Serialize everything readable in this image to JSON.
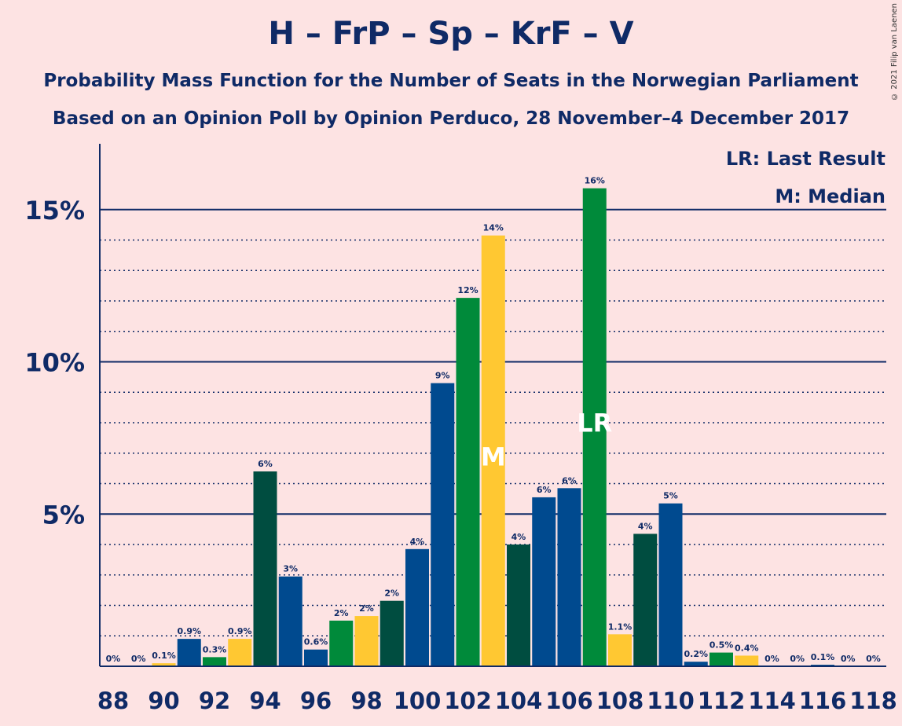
{
  "title": "H – FrP – Sp – KrF – V",
  "subtitle1": "Probability Mass Function for the Number of Seats in the Norwegian Parliament",
  "subtitle2": "Based on an Opinion Poll by Opinion Perduco, 28 November–4 December 2017",
  "copyright": "© 2021 Filip van Laenen",
  "legend": {
    "lr": "LR: Last Result",
    "m": "M: Median"
  },
  "colors": {
    "bg": "#fde3e3",
    "navy": "#0f2a66",
    "darkgreen": "#004d40",
    "blue": "#004a8f",
    "yellow": "#ffc832",
    "green": "#008a3a",
    "label": "#0f2a66"
  },
  "chart_data": {
    "type": "bar",
    "ylim": [
      0,
      17
    ],
    "y_ticks": [
      {
        "value": 5,
        "label": "5%"
      },
      {
        "value": 10,
        "label": "10%"
      },
      {
        "value": 15,
        "label": "15%"
      }
    ],
    "x_tick_labels": [
      "88",
      "90",
      "92",
      "94",
      "96",
      "98",
      "100",
      "102",
      "104",
      "106",
      "108",
      "110",
      "112",
      "114",
      "116",
      "118"
    ],
    "bars": [
      {
        "seat": 88,
        "value": 0,
        "label": "0%",
        "color": "darkgreen"
      },
      {
        "seat": 89,
        "value": 0,
        "label": "0%",
        "color": "blue"
      },
      {
        "seat": 90,
        "value": 0.1,
        "label": "0.1%",
        "color": "yellow"
      },
      {
        "seat": 91,
        "value": 0.9,
        "label": "0.9%",
        "color": "blue"
      },
      {
        "seat": 92,
        "value": 0.3,
        "label": "0.3%",
        "color": "green"
      },
      {
        "seat": 93,
        "value": 0.9,
        "label": "0.9%",
        "color": "yellow"
      },
      {
        "seat": 94,
        "value": 6.4,
        "label": "6%",
        "color": "darkgreen"
      },
      {
        "seat": 95,
        "value": 2.95,
        "label": "3%",
        "color": "blue"
      },
      {
        "seat": 96,
        "value": 0.55,
        "label": "0.6%",
        "color": "blue"
      },
      {
        "seat": 97,
        "value": 1.5,
        "label": "2%",
        "color": "green"
      },
      {
        "seat": 98,
        "value": 1.65,
        "label": "2%",
        "color": "yellow"
      },
      {
        "seat": 99,
        "value": 2.15,
        "label": "2%",
        "color": "darkgreen"
      },
      {
        "seat": 100,
        "value": 3.85,
        "label": "4%",
        "color": "blue"
      },
      {
        "seat": 101,
        "value": 9.3,
        "label": "9%",
        "color": "blue"
      },
      {
        "seat": 102,
        "value": 12.1,
        "label": "12%",
        "color": "green"
      },
      {
        "seat": 103,
        "value": 14.15,
        "label": "14%",
        "color": "yellow",
        "marker": "M"
      },
      {
        "seat": 104,
        "value": 4.0,
        "label": "4%",
        "color": "darkgreen"
      },
      {
        "seat": 105,
        "value": 5.55,
        "label": "6%",
        "color": "blue"
      },
      {
        "seat": 106,
        "value": 5.85,
        "label": "6%",
        "color": "blue"
      },
      {
        "seat": 107,
        "value": 15.7,
        "label": "16%",
        "color": "green",
        "marker": "LR"
      },
      {
        "seat": 108,
        "value": 1.05,
        "label": "1.1%",
        "color": "yellow"
      },
      {
        "seat": 109,
        "value": 4.35,
        "label": "4%",
        "color": "darkgreen"
      },
      {
        "seat": 110,
        "value": 5.35,
        "label": "5%",
        "color": "blue"
      },
      {
        "seat": 111,
        "value": 0.15,
        "label": "0.2%",
        "color": "blue"
      },
      {
        "seat": 112,
        "value": 0.45,
        "label": "0.5%",
        "color": "green"
      },
      {
        "seat": 113,
        "value": 0.35,
        "label": "0.4%",
        "color": "yellow"
      },
      {
        "seat": 114,
        "value": 0,
        "label": "0%",
        "color": "darkgreen"
      },
      {
        "seat": 115,
        "value": 0,
        "label": "0%",
        "color": "blue"
      },
      {
        "seat": 116,
        "value": 0.05,
        "label": "0.1%",
        "color": "blue"
      },
      {
        "seat": 117,
        "value": 0,
        "label": "0%",
        "color": "green"
      },
      {
        "seat": 118,
        "value": 0,
        "label": "0%",
        "color": "yellow"
      }
    ]
  }
}
